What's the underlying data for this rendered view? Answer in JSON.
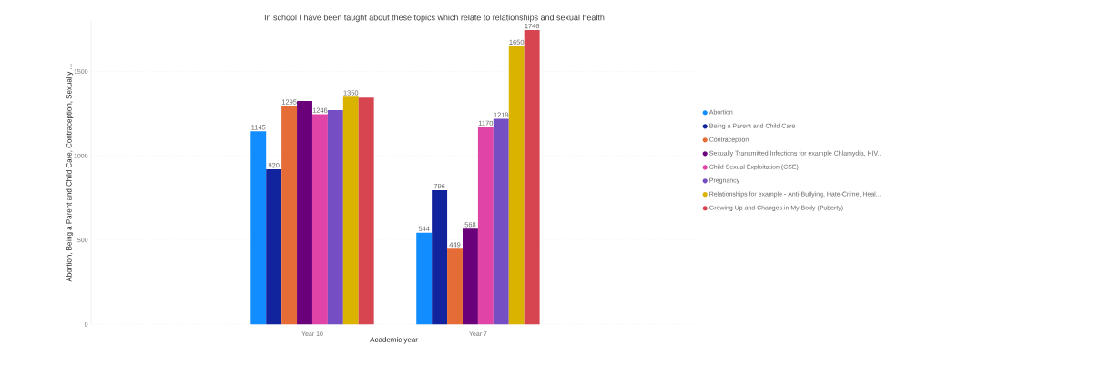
{
  "chart_data": {
    "type": "bar",
    "title": "In school I have been taught about these topics which relate to relationships and sexual health",
    "xlabel": "Academic year",
    "ylabel": "Abortion, Being a Parent and Child Care, Contraception, Sexually ...",
    "categories": [
      "Year 10",
      "Year 7"
    ],
    "series": [
      {
        "name": "Abortion",
        "color": "#118dff",
        "values": [
          1145,
          544
        ],
        "value_labels": [
          "1145",
          "544"
        ]
      },
      {
        "name": "Being a Parent and Child Care",
        "color": "#12239e",
        "values": [
          920,
          796
        ],
        "value_labels": [
          "920",
          "796"
        ]
      },
      {
        "name": "Contraception",
        "color": "#e66c37",
        "values": [
          1295,
          449
        ],
        "value_labels": [
          "1295",
          "449"
        ]
      },
      {
        "name": "Sexually Transmitted Infections for example Chlamydia, HIV...",
        "color": "#6b007b",
        "values": [
          1324,
          568
        ],
        "value_labels": [
          null,
          "568"
        ]
      },
      {
        "name": "Child Sexual Exploitation (CSE)",
        "color": "#e044a7",
        "values": [
          1246,
          1170
        ],
        "value_labels": [
          "1246",
          "1170"
        ]
      },
      {
        "name": "Pregnancy",
        "color": "#744ec2",
        "values": [
          1270,
          1219
        ],
        "value_labels": [
          null,
          "1219"
        ]
      },
      {
        "name": "Relationships for example - Anti-Bullying, Hate-Crime, Heal...",
        "color": "#d9b300",
        "values": [
          1350,
          1650
        ],
        "value_labels": [
          "1350",
          "1650"
        ]
      },
      {
        "name": "Growing Up and Changes in My Body (Puberty)",
        "color": "#d64550",
        "values": [
          1345,
          1746
        ],
        "value_labels": [
          null,
          "1746"
        ]
      }
    ],
    "ylim": [
      0,
      1800
    ],
    "yticks": [
      0,
      500,
      1000,
      1500
    ],
    "grid": "y",
    "legend": "right"
  }
}
